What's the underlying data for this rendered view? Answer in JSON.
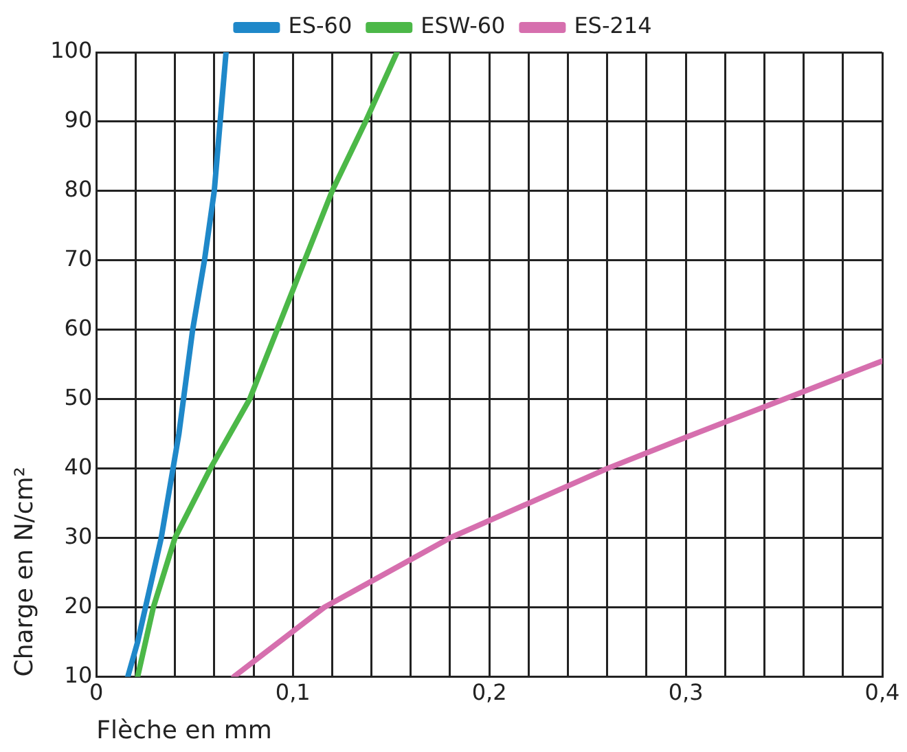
{
  "chart_data": {
    "type": "line",
    "xlabel": "Flèche en mm",
    "ylabel": "Charge en N/cm²",
    "xlim": [
      0,
      0.4
    ],
    "ylim": [
      10,
      100
    ],
    "xticks": [
      0,
      {
        "value": 0.02,
        "label": null
      },
      {
        "value": 0.04,
        "label": null
      },
      {
        "value": 0.06,
        "label": null
      },
      {
        "value": 0.08,
        "label": null
      },
      {
        "value": 0.1,
        "label": "0,1"
      },
      {
        "value": 0.12,
        "label": null
      },
      {
        "value": 0.14,
        "label": null
      },
      {
        "value": 0.16,
        "label": null
      },
      {
        "value": 0.18,
        "label": null
      },
      {
        "value": 0.2,
        "label": "0,2"
      },
      {
        "value": 0.22,
        "label": null
      },
      {
        "value": 0.24,
        "label": null
      },
      {
        "value": 0.26,
        "label": null
      },
      {
        "value": 0.28,
        "label": null
      },
      {
        "value": 0.3,
        "label": "0,3"
      },
      {
        "value": 0.32,
        "label": null
      },
      {
        "value": 0.34,
        "label": null
      },
      {
        "value": 0.36,
        "label": null
      },
      {
        "value": 0.38,
        "label": null
      },
      {
        "value": 0.4,
        "label": "0,4"
      }
    ],
    "yticks": [
      10,
      20,
      30,
      40,
      50,
      60,
      70,
      80,
      90,
      100
    ],
    "grid": true,
    "legend": "top",
    "marker": "none",
    "line_style": "solid",
    "series": [
      {
        "name": "ES-60",
        "color": "#1f88c9",
        "x": [
          0.016,
          0.021,
          0.025,
          0.033,
          0.042,
          0.049,
          0.055,
          0.06,
          0.063,
          0.066
        ],
        "values": [
          10,
          15,
          20,
          30,
          45,
          60,
          70,
          80,
          90,
          100
        ]
      },
      {
        "name": "ESW-60",
        "color": "#4cb848",
        "x": [
          0.021,
          0.029,
          0.04,
          0.058,
          0.078,
          0.099,
          0.12,
          0.137,
          0.153
        ],
        "values": [
          10,
          20,
          30,
          40,
          50,
          65,
          80,
          90,
          100
        ]
      },
      {
        "name": "ES-214",
        "color": "#d66fae",
        "x": [
          0.07,
          0.116,
          0.18,
          0.22,
          0.26,
          0.3,
          0.35,
          0.4
        ],
        "values": [
          10,
          20,
          30,
          35,
          40,
          44.5,
          50,
          55.5
        ]
      }
    ]
  }
}
